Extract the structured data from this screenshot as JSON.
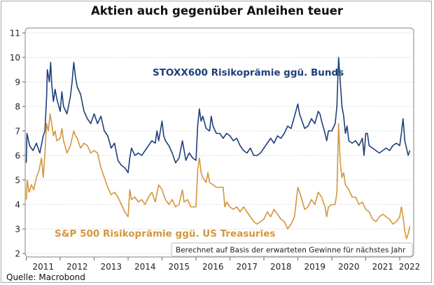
{
  "chart_data": {
    "type": "line",
    "title": "Aktien auch gegenüber Anleihen teuer",
    "source": "Quelle: Macrobond",
    "note": "Berechnet auf Basis der erwarteten Gewinne für nächstes Jahr",
    "xlabel": "",
    "ylabel": "",
    "xlim": [
      2011.0,
      2022.35
    ],
    "ylim": [
      2,
      11
    ],
    "grid": true,
    "x_ticks": [
      2011,
      2012,
      2013,
      2014,
      2015,
      2016,
      2017,
      2018,
      2019,
      2020,
      2021,
      2022,
      2023
    ],
    "x_tick_labels": [
      "2011",
      "2012",
      "2013",
      "2014",
      "2015",
      "2016",
      "2017",
      "2018",
      "2019",
      "2020",
      "2021",
      "2022"
    ],
    "y_ticks": [
      2,
      3,
      4,
      5,
      6,
      7,
      8,
      9,
      10,
      11
    ],
    "y_tick_labels": [
      "2",
      "3",
      "4",
      "5",
      "6",
      "7",
      "8",
      "9",
      "10",
      "11"
    ],
    "series": [
      {
        "name": "STOXX600 Risikoprämie ggü. Bunds",
        "color": "#1f3f7a",
        "x": [
          2011.0,
          2011.02,
          2011.1,
          2011.2,
          2011.3,
          2011.4,
          2011.5,
          2011.55,
          2011.6,
          2011.62,
          2011.68,
          2011.72,
          2011.75,
          2011.8,
          2011.85,
          2011.9,
          2012.0,
          2012.05,
          2012.1,
          2012.2,
          2012.3,
          2012.35,
          2012.4,
          2012.45,
          2012.5,
          2012.6,
          2012.7,
          2012.8,
          2012.9,
          2013.0,
          2013.1,
          2013.2,
          2013.3,
          2013.4,
          2013.5,
          2013.6,
          2013.7,
          2013.8,
          2013.9,
          2014.0,
          2014.05,
          2014.1,
          2014.2,
          2014.3,
          2014.4,
          2014.5,
          2014.6,
          2014.7,
          2014.8,
          2014.85,
          2014.9,
          2015.0,
          2015.05,
          2015.1,
          2015.2,
          2015.3,
          2015.4,
          2015.5,
          2015.6,
          2015.7,
          2015.8,
          2015.9,
          2016.0,
          2016.05,
          2016.1,
          2016.15,
          2016.2,
          2016.3,
          2016.4,
          2016.45,
          2016.5,
          2016.6,
          2016.7,
          2016.8,
          2016.9,
          2017.0,
          2017.1,
          2017.2,
          2017.3,
          2017.4,
          2017.5,
          2017.6,
          2017.7,
          2017.8,
          2017.9,
          2018.0,
          2018.1,
          2018.2,
          2018.3,
          2018.4,
          2018.5,
          2018.6,
          2018.7,
          2018.8,
          2018.9,
          2019.0,
          2019.05,
          2019.1,
          2019.2,
          2019.3,
          2019.4,
          2019.5,
          2019.6,
          2019.65,
          2019.7,
          2019.8,
          2019.85,
          2019.9,
          2020.0,
          2020.1,
          2020.15,
          2020.2,
          2020.25,
          2020.3,
          2020.35,
          2020.4,
          2020.45,
          2020.5,
          2020.6,
          2020.7,
          2020.8,
          2020.9,
          2020.95,
          2021.0,
          2021.05,
          2021.1,
          2021.2,
          2021.3,
          2021.4,
          2021.5,
          2021.6,
          2021.7,
          2021.8,
          2021.9,
          2022.0,
          2022.05,
          2022.1,
          2022.15,
          2022.2,
          2022.25,
          2022.3
        ],
        "values": [
          5.7,
          6.9,
          6.4,
          6.2,
          6.5,
          6.1,
          6.8,
          7.0,
          8.4,
          9.5,
          9.0,
          9.8,
          8.9,
          8.2,
          8.7,
          8.3,
          7.8,
          8.6,
          8.0,
          7.7,
          8.4,
          9.0,
          9.8,
          9.2,
          8.8,
          8.5,
          7.8,
          7.5,
          7.3,
          7.7,
          7.3,
          7.6,
          7.0,
          6.8,
          6.3,
          6.5,
          5.8,
          5.6,
          5.5,
          5.3,
          5.9,
          6.3,
          6.0,
          6.1,
          6.0,
          6.2,
          6.4,
          6.6,
          6.5,
          7.0,
          6.6,
          7.4,
          6.8,
          6.6,
          6.4,
          6.1,
          5.7,
          5.9,
          6.6,
          5.8,
          6.1,
          5.9,
          5.8,
          7.2,
          7.9,
          7.4,
          7.6,
          7.1,
          7.0,
          7.6,
          7.2,
          6.9,
          6.9,
          6.7,
          6.9,
          6.8,
          6.6,
          6.7,
          6.4,
          6.2,
          6.1,
          6.3,
          6.0,
          6.0,
          6.1,
          6.3,
          6.5,
          6.7,
          6.5,
          6.8,
          6.7,
          6.9,
          7.2,
          7.1,
          7.6,
          8.1,
          7.7,
          7.5,
          7.1,
          7.2,
          7.5,
          7.3,
          7.8,
          7.7,
          7.4,
          6.9,
          6.6,
          7.0,
          7.0,
          7.3,
          8.0,
          10.0,
          9.0,
          8.0,
          7.6,
          6.9,
          7.2,
          6.6,
          6.5,
          6.6,
          6.4,
          6.7,
          6.0,
          6.9,
          6.9,
          6.4,
          6.3,
          6.2,
          6.1,
          6.2,
          6.3,
          6.2,
          6.4,
          6.5,
          6.4,
          6.9,
          7.5,
          6.6,
          6.3,
          6.0,
          6.2
        ]
      },
      {
        "name": "S&P 500 Risikoprämie ggü. US Treasuries",
        "color": "#d4963c",
        "x": [
          2011.0,
          2011.03,
          2011.08,
          2011.15,
          2011.22,
          2011.3,
          2011.38,
          2011.45,
          2011.5,
          2011.55,
          2011.6,
          2011.65,
          2011.7,
          2011.75,
          2011.8,
          2011.85,
          2011.9,
          2012.0,
          2012.05,
          2012.1,
          2012.2,
          2012.3,
          2012.4,
          2012.45,
          2012.5,
          2012.6,
          2012.7,
          2012.8,
          2012.9,
          2013.0,
          2013.1,
          2013.2,
          2013.3,
          2013.4,
          2013.5,
          2013.6,
          2013.7,
          2013.8,
          2013.9,
          2014.0,
          2014.05,
          2014.1,
          2014.2,
          2014.3,
          2014.4,
          2014.5,
          2014.6,
          2014.7,
          2014.8,
          2014.9,
          2015.0,
          2015.1,
          2015.2,
          2015.3,
          2015.4,
          2015.5,
          2015.6,
          2015.65,
          2015.75,
          2015.85,
          2016.0,
          2016.05,
          2016.1,
          2016.15,
          2016.2,
          2016.3,
          2016.35,
          2016.4,
          2016.5,
          2016.6,
          2016.7,
          2016.8,
          2016.85,
          2016.9,
          2017.0,
          2017.1,
          2017.2,
          2017.3,
          2017.4,
          2017.5,
          2017.6,
          2017.7,
          2017.8,
          2017.9,
          2018.0,
          2018.1,
          2018.2,
          2018.3,
          2018.4,
          2018.5,
          2018.6,
          2018.7,
          2018.8,
          2018.9,
          2019.0,
          2019.1,
          2019.2,
          2019.3,
          2019.4,
          2019.5,
          2019.6,
          2019.7,
          2019.8,
          2019.85,
          2019.9,
          2020.0,
          2020.1,
          2020.15,
          2020.2,
          2020.25,
          2020.3,
          2020.35,
          2020.4,
          2020.5,
          2020.6,
          2020.7,
          2020.8,
          2020.9,
          2021.0,
          2021.1,
          2021.2,
          2021.3,
          2021.4,
          2021.5,
          2021.6,
          2021.7,
          2021.8,
          2021.9,
          2022.0,
          2022.05,
          2022.1,
          2022.15,
          2022.2,
          2022.25,
          2022.3
        ],
        "values": [
          4.2,
          5.0,
          4.5,
          4.8,
          4.6,
          5.1,
          5.4,
          5.9,
          5.1,
          6.1,
          7.3,
          7.0,
          7.7,
          7.3,
          6.8,
          7.0,
          6.6,
          6.7,
          7.1,
          6.6,
          6.1,
          6.4,
          7.0,
          6.8,
          6.7,
          6.3,
          6.5,
          6.4,
          6.1,
          6.2,
          6.1,
          5.5,
          5.1,
          4.7,
          4.4,
          4.5,
          4.3,
          4.0,
          3.7,
          3.5,
          4.6,
          4.2,
          4.3,
          4.1,
          4.2,
          4.0,
          4.3,
          4.5,
          4.1,
          4.8,
          4.6,
          4.2,
          4.0,
          4.2,
          3.9,
          4.0,
          4.6,
          4.1,
          4.2,
          3.9,
          3.9,
          5.4,
          5.9,
          5.3,
          5.1,
          4.9,
          5.3,
          4.9,
          4.8,
          4.7,
          4.7,
          4.7,
          3.9,
          4.1,
          3.9,
          3.8,
          3.9,
          3.7,
          3.9,
          3.7,
          3.5,
          3.3,
          3.2,
          3.3,
          3.4,
          3.7,
          3.5,
          3.8,
          3.6,
          3.4,
          3.3,
          3.0,
          3.2,
          3.5,
          4.7,
          4.3,
          3.8,
          3.9,
          4.2,
          4.0,
          4.5,
          4.3,
          3.9,
          3.5,
          3.9,
          4.0,
          4.0,
          4.5,
          7.3,
          5.7,
          5.1,
          5.3,
          4.8,
          4.6,
          4.3,
          4.3,
          4.0,
          4.1,
          3.8,
          3.7,
          3.4,
          3.3,
          3.5,
          3.6,
          3.5,
          3.4,
          3.2,
          3.3,
          3.5,
          3.9,
          3.5,
          2.9,
          2.6,
          2.8,
          3.1
        ]
      }
    ]
  }
}
